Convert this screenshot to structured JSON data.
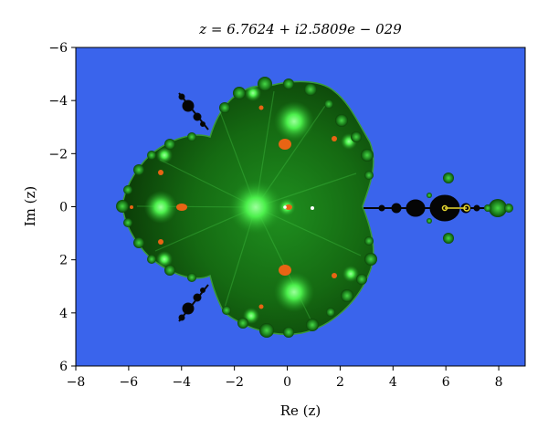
{
  "title": "z = 6.7624 + i2.5809e − 029",
  "colors": {
    "background": "#3a64ec",
    "set_dark": "#0a2a05",
    "set_green": "#1c8a1c",
    "glow": "#5cff5c",
    "orange": "#e86414",
    "black": "#050505",
    "orbit": "#e8d830"
  },
  "chart_data": {
    "type": "heatmap",
    "xlabel": "Re (z)",
    "ylabel": "Im (z)",
    "xlim": [
      -8,
      9
    ],
    "ylim": [
      6,
      -6
    ],
    "x_ticks": [
      -8,
      -6,
      -4,
      -2,
      0,
      2,
      4,
      6,
      8
    ],
    "y_ticks": [
      -6,
      -4,
      -2,
      0,
      2,
      4,
      6
    ],
    "x_tick_labels": [
      "−8",
      "−6",
      "−4",
      "−2",
      "0",
      "2",
      "4",
      "6",
      "8"
    ],
    "y_tick_labels": [
      "−6",
      "−4",
      "−2",
      "0",
      "2",
      "4",
      "6"
    ],
    "grid": false,
    "marked_point": {
      "re": 6.7624,
      "im": 0
    }
  }
}
